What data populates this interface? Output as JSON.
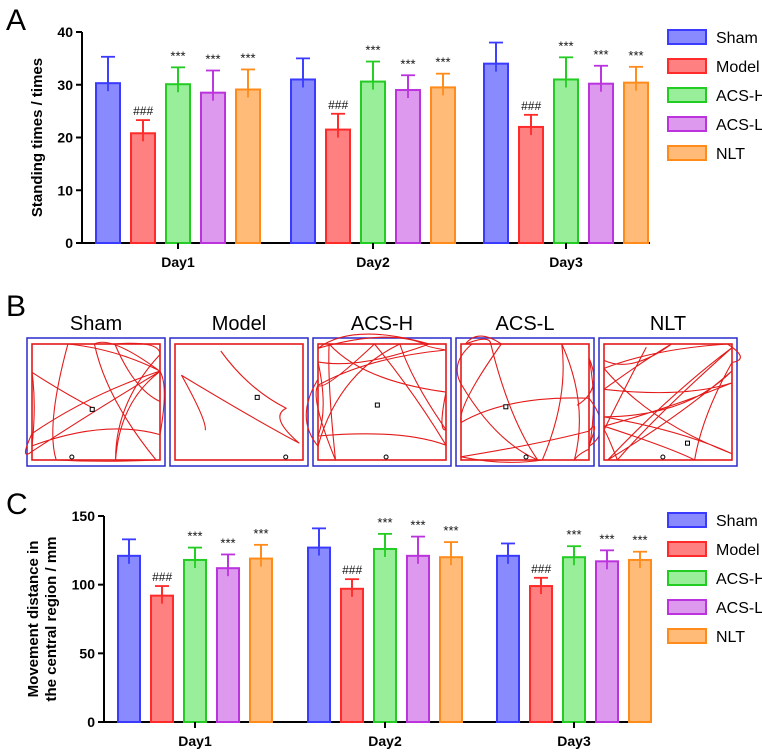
{
  "panels": {
    "a": {
      "letter": "A"
    },
    "b": {
      "letter": "B",
      "arenas": [
        "Sham",
        "Model",
        "ACS-H",
        "ACS-L",
        "NLT"
      ]
    },
    "c": {
      "letter": "C"
    }
  },
  "chart_data": [
    {
      "type": "bar",
      "panel": "A",
      "ylabel": "Standing times / times",
      "ylim": [
        0,
        40
      ],
      "yticks": [
        0,
        10,
        20,
        30,
        40
      ],
      "categories": [
        "Day1",
        "Day2",
        "Day3"
      ],
      "legend_position": "right",
      "series": [
        {
          "name": "Sham",
          "color": "#3b3bff",
          "fill": "#8a8aff",
          "values": [
            30.3,
            31.0,
            34.0
          ],
          "errors": [
            5.0,
            4.0,
            4.0
          ],
          "marks": [
            "",
            "",
            ""
          ]
        },
        {
          "name": "Model",
          "color": "#ff2a2a",
          "fill": "#ff8080",
          "values": [
            20.8,
            21.5,
            22.0
          ],
          "errors": [
            2.5,
            3.0,
            2.3
          ],
          "marks": [
            "###",
            "###",
            "###"
          ]
        },
        {
          "name": "ACS-H",
          "color": "#22cc22",
          "fill": "#99ee99",
          "values": [
            30.1,
            30.6,
            31.0
          ],
          "errors": [
            3.2,
            3.8,
            4.2
          ],
          "marks": [
            "***",
            "***",
            "***"
          ]
        },
        {
          "name": "ACS-L",
          "color": "#bb33dd",
          "fill": "#dd99ee",
          "values": [
            28.5,
            29.0,
            30.2
          ],
          "errors": [
            4.2,
            2.8,
            3.4
          ],
          "marks": [
            "***",
            "***",
            "***"
          ]
        },
        {
          "name": "NLT",
          "color": "#ff8c1a",
          "fill": "#ffbb77",
          "values": [
            29.1,
            29.5,
            30.4
          ],
          "errors": [
            3.8,
            2.6,
            3.0
          ],
          "marks": [
            "***",
            "***",
            "***"
          ]
        }
      ]
    },
    {
      "type": "bar",
      "panel": "C",
      "ylabel": "Movement distance in the central region / mm",
      "ylabel_lines": [
        "Movement distance in",
        "the central region / mm"
      ],
      "ylim": [
        0,
        150
      ],
      "yticks": [
        0,
        50,
        100,
        150
      ],
      "categories": [
        "Day1",
        "Day2",
        "Day3"
      ],
      "legend_position": "right",
      "series": [
        {
          "name": "Sham",
          "color": "#3b3bff",
          "fill": "#8a8aff",
          "values": [
            121,
            127,
            121
          ],
          "errors": [
            12,
            14,
            9
          ],
          "marks": [
            "",
            "",
            ""
          ]
        },
        {
          "name": "Model",
          "color": "#ff2a2a",
          "fill": "#ff8080",
          "values": [
            92,
            97,
            99
          ],
          "errors": [
            7,
            7,
            6
          ],
          "marks": [
            "###",
            "###",
            "###"
          ]
        },
        {
          "name": "ACS-H",
          "color": "#22cc22",
          "fill": "#99ee99",
          "values": [
            118,
            126,
            120
          ],
          "errors": [
            9,
            11,
            8
          ],
          "marks": [
            "***",
            "***",
            "***"
          ]
        },
        {
          "name": "ACS-L",
          "color": "#bb33dd",
          "fill": "#dd99ee",
          "values": [
            112,
            121,
            117
          ],
          "errors": [
            10,
            14,
            8
          ],
          "marks": [
            "***",
            "***",
            "***"
          ]
        },
        {
          "name": "NLT",
          "color": "#ff8c1a",
          "fill": "#ffbb77",
          "values": [
            119,
            120,
            118
          ],
          "errors": [
            10,
            11,
            6
          ],
          "marks": [
            "***",
            "***",
            "***"
          ]
        }
      ]
    }
  ]
}
